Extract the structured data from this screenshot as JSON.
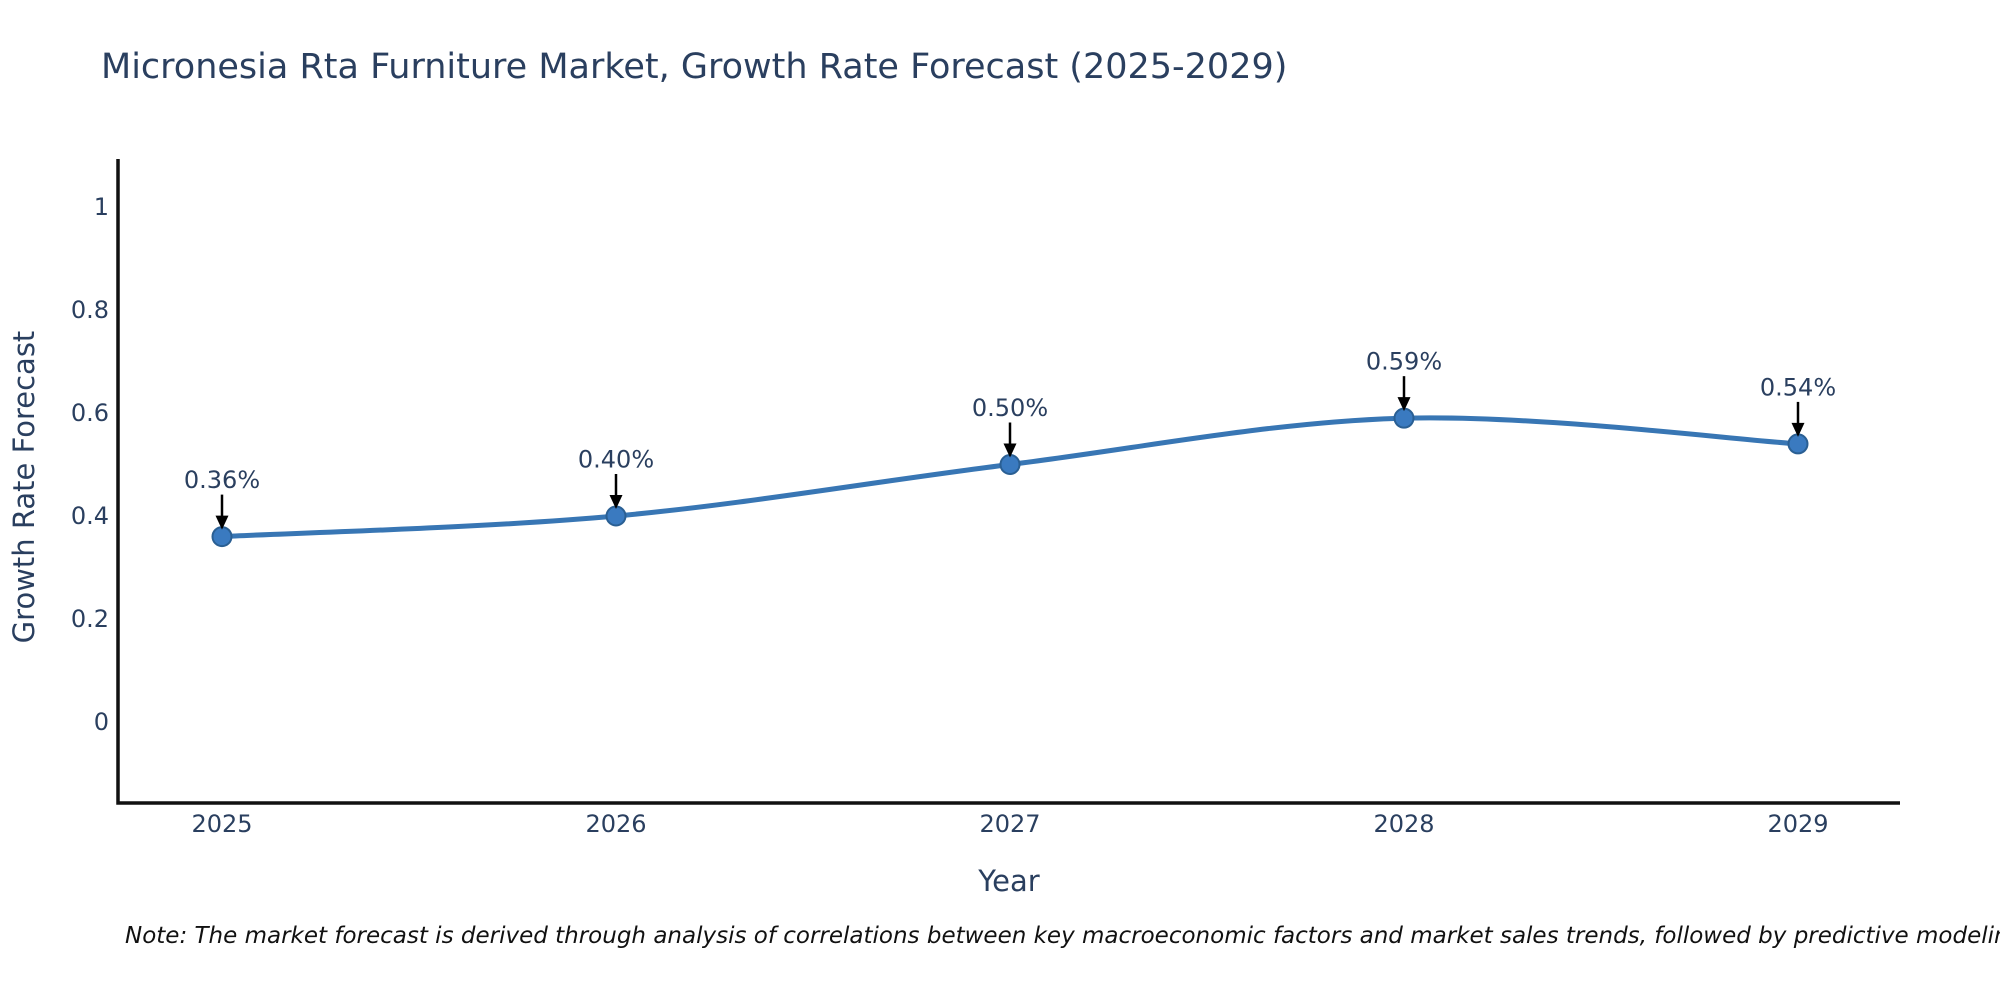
{
  "chart_data": {
    "type": "line",
    "title": "Micronesia Rta Furniture Market, Growth Rate Forecast (2025-2029)",
    "xlabel": "Year",
    "ylabel": "Growth Rate Forecast",
    "x": [
      2025,
      2026,
      2027,
      2028,
      2029
    ],
    "series": [
      {
        "name": "Growth Rate Forecast",
        "values": [
          0.36,
          0.4,
          0.5,
          0.59,
          0.54
        ],
        "point_labels": [
          "0.36%",
          "0.40%",
          "0.50%",
          "0.59%",
          "0.54%"
        ]
      }
    ],
    "xtick_labels": [
      "2025",
      "2026",
      "2027",
      "2028",
      "2029"
    ],
    "yticks": [
      0,
      0.2,
      0.4,
      0.6,
      0.8,
      1
    ],
    "ytick_labels": [
      "0",
      "0.2",
      "0.4",
      "0.6",
      "0.8",
      "1"
    ],
    "ylim": [
      -0.157,
      1.095
    ],
    "grid": false,
    "legend": "none",
    "line_shape": "spline",
    "annotations": "value labels with downward arrows above each point"
  },
  "note": "Note: The market forecast is derived through analysis of correlations between key macroeconomic factors and market sales trends, followed by predictive modeling to project future sales",
  "colors": {
    "background": "#ffffff",
    "line": "#3876b4",
    "marker_fill": "#3a7ac0",
    "marker_stroke": "#2a5f93",
    "axis_line": "#111111",
    "title_text": "#2a3f5f",
    "axis_text": "#2a3f5f",
    "arrow": "#000000",
    "note_text": "#111111"
  }
}
